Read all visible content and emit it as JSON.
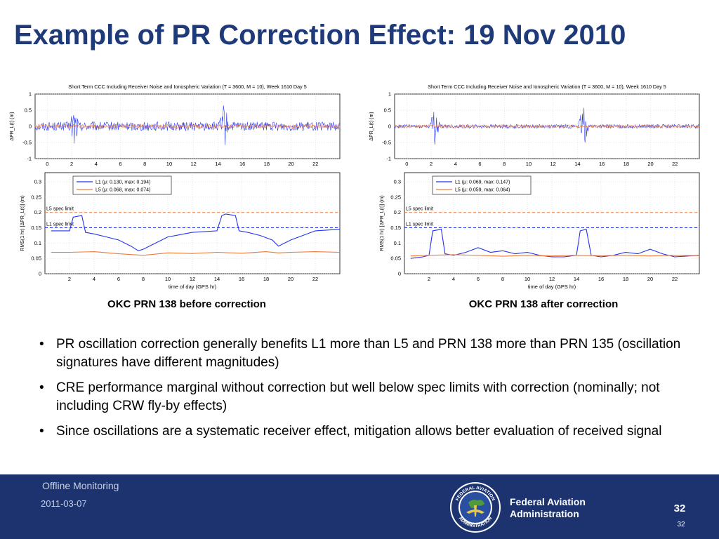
{
  "slide": {
    "title": "Example of PR Correction Effect: 19 Nov 2010",
    "bullets": [
      "PR oscillation correction generally benefits L1 more than L5 and PRN 138 more than PRN 135 (oscillation signatures have different magnitudes)",
      "CRE performance marginal without correction but well below spec limits with correction (nominally; not including CRW fly-by effects)",
      "Since oscillations are a systematic receiver effect, mitigation allows better evaluation of received signal"
    ],
    "bullet_symbol": "•"
  },
  "footer": {
    "title": "Offline Monitoring",
    "date": "2011-03-07",
    "agency_line1": "Federal Aviation",
    "agency_line2": "Administration",
    "page": "32",
    "page_small": "32",
    "seal_text_top": "FEDERAL AVIATION",
    "seal_text_bottom": "ADMINISTRATION"
  },
  "colors": {
    "title": "#1f3a78",
    "footer_bg": "#1c3370",
    "L1": "#2233ee",
    "L5": "#f07a3a"
  },
  "chart_data": [
    {
      "type": "line",
      "caption": "OKC PRN 138 before correction",
      "top_plot": {
        "title": "Short Term CCC Including Receiver Noise and Ionospheric Variation (T = 3600, M = 10), Week 1610 Day 5",
        "ylabel": "ΔPR_L(t) (m)",
        "ylim": [
          -1,
          1
        ],
        "yticks": [
          "1",
          "0.5",
          "0",
          "-0.5",
          "-1"
        ],
        "xlim": [
          -1,
          24
        ],
        "xticks": [
          "0",
          "2",
          "4",
          "6",
          "8",
          "10",
          "12",
          "14",
          "16",
          "18",
          "20",
          "22"
        ],
        "noise": {
          "L1_amplitude": 0.14,
          "L5_amplitude": 0.06,
          "L1_spikes": [
            {
              "x": 2.2,
              "amp": 0.75
            },
            {
              "x": 14.5,
              "amp": 0.75
            }
          ]
        }
      },
      "bottom_plot": {
        "ylabel": "RMS(1 hr) [ΔPR_L(t)] (m)",
        "xlabel": "time of day (GPS hr)",
        "ylim": [
          0,
          0.33
        ],
        "yticks": [
          "0",
          "0.05",
          "0.1",
          "0.15",
          "0.2",
          "0.25",
          "0.3"
        ],
        "xticks": [
          "2",
          "4",
          "6",
          "8",
          "10",
          "12",
          "14",
          "16",
          "18",
          "20",
          "22"
        ],
        "xlim": [
          0,
          24
        ],
        "L5_spec_limit": 0.2,
        "L1_spec_limit": 0.15,
        "L5_spec_label": "L5 spec limit",
        "L1_spec_label": "L1 spec limit",
        "series": [
          {
            "name": "L1 (μ: 0.130, max: 0.194)",
            "color": "#2233ee",
            "x": [
              0.5,
              2.0,
              2.3,
              3.0,
              3.3,
              4.0,
              5.0,
              6.0,
              7.0,
              7.6,
              8.0,
              9.0,
              10.0,
              12.0,
              14.0,
              14.4,
              14.7,
              15.5,
              15.8,
              16.5,
              17.5,
              18.5,
              19.0,
              20.0,
              22.0,
              24.0
            ],
            "values": [
              0.14,
              0.14,
              0.185,
              0.19,
              0.135,
              0.13,
              0.12,
              0.11,
              0.09,
              0.075,
              0.08,
              0.1,
              0.12,
              0.135,
              0.14,
              0.19,
              0.195,
              0.19,
              0.14,
              0.135,
              0.125,
              0.11,
              0.09,
              0.11,
              0.14,
              0.145
            ]
          },
          {
            "name": "L5 (μ: 0.068, max: 0.074)",
            "color": "#f07a3a",
            "x": [
              0.5,
              2.0,
              4.0,
              6.0,
              8.0,
              10.0,
              12.0,
              14.0,
              16.0,
              18.0,
              19.0,
              20.0,
              22.0,
              24.0
            ],
            "values": [
              0.07,
              0.07,
              0.072,
              0.065,
              0.06,
              0.068,
              0.066,
              0.07,
              0.067,
              0.072,
              0.068,
              0.07,
              0.072,
              0.07
            ]
          }
        ]
      }
    },
    {
      "type": "line",
      "caption": "OKC PRN 138 after correction",
      "top_plot": {
        "title": "Short Term CCC Including Receiver Noise and Ionospheric Variation (T = 3600, M = 10), Week 1610 Day 5",
        "ylabel": "ΔPR_L(t) (m)",
        "ylim": [
          -1,
          1
        ],
        "yticks": [
          "1",
          "0.5",
          "0",
          "-0.5",
          "-1"
        ],
        "xlim": [
          -1,
          24
        ],
        "xticks": [
          "0",
          "2",
          "4",
          "6",
          "8",
          "10",
          "12",
          "14",
          "16",
          "18",
          "20",
          "22"
        ],
        "noise": {
          "L1_amplitude": 0.06,
          "L5_amplitude": 0.05,
          "L1_spikes": [
            {
              "x": 2.3,
              "amp": 0.65
            },
            {
              "x": 14.5,
              "amp": 0.7
            }
          ]
        }
      },
      "bottom_plot": {
        "ylabel": "RMS(1 hr) [ΔPR_L(t)] (m)",
        "xlabel": "time of day (GPS hr)",
        "ylim": [
          0,
          0.33
        ],
        "yticks": [
          "0",
          "0.05",
          "0.1",
          "0.15",
          "0.2",
          "0.25",
          "0.3"
        ],
        "xticks": [
          "2",
          "4",
          "6",
          "8",
          "10",
          "12",
          "14",
          "16",
          "18",
          "20",
          "22"
        ],
        "xlim": [
          0,
          24
        ],
        "L5_spec_limit": 0.2,
        "L1_spec_limit": 0.15,
        "L5_spec_label": "L5 spec limit",
        "L1_spec_label": "L1 spec limit",
        "series": [
          {
            "name": "L1 (μ: 0.069, max: 0.147)",
            "color": "#2233ee",
            "x": [
              0.5,
              1.5,
              2.0,
              2.3,
              3.0,
              3.3,
              4.0,
              5.0,
              6.0,
              7.0,
              8.0,
              9.0,
              10.0,
              11.0,
              12.0,
              13.0,
              14.0,
              14.3,
              14.8,
              15.2,
              16.0,
              17.0,
              18.0,
              19.0,
              20.0,
              21.0,
              22.0,
              24.0
            ],
            "values": [
              0.05,
              0.055,
              0.06,
              0.14,
              0.145,
              0.065,
              0.06,
              0.07,
              0.085,
              0.07,
              0.075,
              0.065,
              0.07,
              0.06,
              0.055,
              0.055,
              0.06,
              0.14,
              0.145,
              0.06,
              0.055,
              0.06,
              0.07,
              0.065,
              0.08,
              0.065,
              0.055,
              0.06
            ]
          },
          {
            "name": "L5 (μ: 0.059, max: 0.064)",
            "color": "#f07a3a",
            "x": [
              0.5,
              2.0,
              4.0,
              6.0,
              8.0,
              10.0,
              12.0,
              14.0,
              16.0,
              18.0,
              20.0,
              22.0,
              24.0
            ],
            "values": [
              0.058,
              0.06,
              0.062,
              0.06,
              0.057,
              0.06,
              0.058,
              0.06,
              0.059,
              0.06,
              0.058,
              0.06,
              0.059
            ]
          }
        ]
      }
    }
  ]
}
